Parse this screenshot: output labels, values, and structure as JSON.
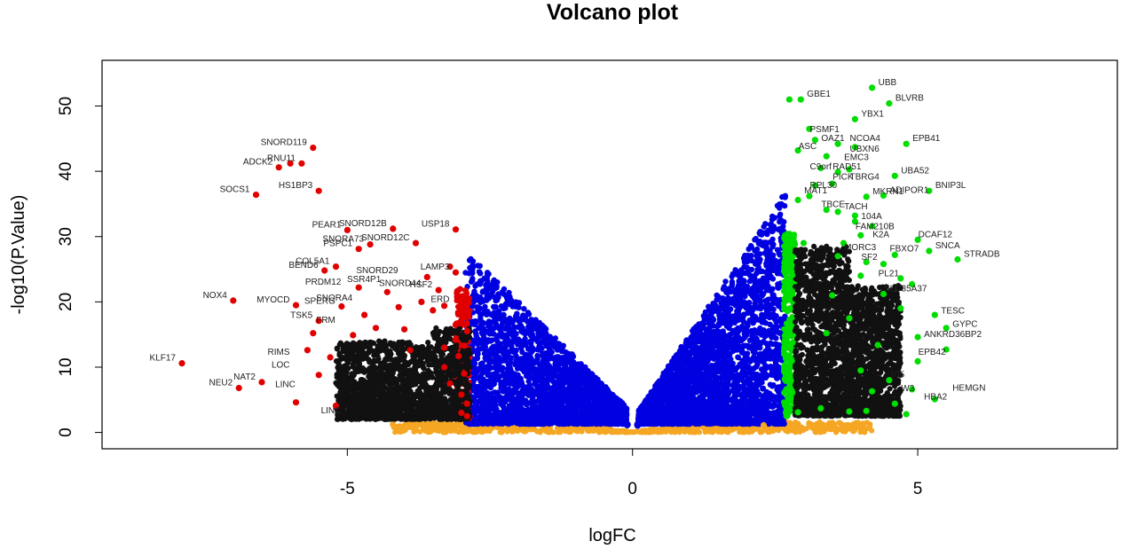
{
  "chart_data": {
    "type": "scatter",
    "title": "Volcano plot",
    "xlabel": "logFC",
    "ylabel": "-log10(P.Value)",
    "xlim": [
      -9.3,
      8.5
    ],
    "ylim": [
      -2.5,
      57
    ],
    "x_ticks": [
      -5,
      0,
      5
    ],
    "y_ticks": [
      0,
      10,
      20,
      30,
      40,
      50
    ],
    "x_tick_labels": [
      "-5",
      "0",
      "5"
    ],
    "y_tick_labels": [
      "0",
      "10",
      "20",
      "30",
      "40",
      "50"
    ],
    "grid": false,
    "legend": "none",
    "colors": {
      "not_significant": "#F5A623",
      "down_moderate": "#0000E0",
      "down_strong": "#E00000",
      "up_moderate": "#0000E0",
      "up_strong": "#00DD00",
      "labels": "#222222"
    },
    "groups": {
      "red": [
        [
          -7.9,
          10.6
        ],
        [
          -7.0,
          20.2
        ],
        [
          -6.9,
          6.8
        ],
        [
          -6.5,
          7.7
        ],
        [
          -6.6,
          36.4
        ],
        [
          -6.2,
          40.6
        ],
        [
          -6.0,
          41.2
        ],
        [
          -5.6,
          43.6
        ],
        [
          -5.8,
          41.2
        ],
        [
          -5.5,
          37.0
        ],
        [
          -5.9,
          19.5
        ],
        [
          -5.5,
          17.1
        ],
        [
          -5.4,
          24.8
        ],
        [
          -5.2,
          25.4
        ],
        [
          -5.0,
          31.0
        ],
        [
          -4.8,
          28.1
        ],
        [
          -4.6,
          28.8
        ],
        [
          -4.2,
          31.2
        ],
        [
          -3.8,
          29.0
        ],
        [
          -3.6,
          23.8
        ],
        [
          -3.1,
          31.1
        ],
        [
          -3.1,
          24.5
        ],
        [
          -3.4,
          21.8
        ],
        [
          -4.3,
          21.5
        ],
        [
          -5.1,
          19.3
        ],
        [
          -4.7,
          18.0
        ],
        [
          -3.0,
          17.2
        ],
        [
          -3.3,
          19.4
        ],
        [
          -5.3,
          11.5
        ],
        [
          -5.5,
          8.8
        ],
        [
          -4.9,
          14.9
        ],
        [
          -3.9,
          12.6
        ],
        [
          -3.1,
          14.2
        ],
        [
          -2.95,
          9.0
        ],
        [
          -2.9,
          4.4
        ],
        [
          -3.0,
          5.8
        ],
        [
          -3.2,
          7.5
        ],
        [
          -3.05,
          11.7
        ],
        [
          -2.95,
          13.3
        ],
        [
          -2.9,
          15.5
        ],
        [
          -3.1,
          16.5
        ],
        [
          -3.3,
          13.0
        ],
        [
          -3.5,
          18.7
        ],
        [
          -4.5,
          16.0
        ],
        [
          -4.1,
          19.2
        ],
        [
          -5.6,
          15.2
        ],
        [
          -5.7,
          12.6
        ],
        [
          -5.9,
          4.6
        ],
        [
          -5.2,
          4.1
        ],
        [
          -4.0,
          15.8
        ],
        [
          -3.7,
          20.0
        ],
        [
          -4.8,
          22.2
        ],
        [
          -3.3,
          10.0
        ],
        [
          -3.0,
          3.0
        ],
        [
          -2.9,
          2.5
        ],
        [
          -3.0,
          20.5
        ],
        [
          -3.2,
          25.4
        ],
        [
          -2.95,
          18.4
        ]
      ],
      "green": [
        [
          2.75,
          51.0
        ],
        [
          2.95,
          51.0
        ],
        [
          4.2,
          52.8
        ],
        [
          4.5,
          50.4
        ],
        [
          3.9,
          48.0
        ],
        [
          3.2,
          44.8
        ],
        [
          3.4,
          42.3
        ],
        [
          3.6,
          44.2
        ],
        [
          3.9,
          43.7
        ],
        [
          4.8,
          44.2
        ],
        [
          3.3,
          40.5
        ],
        [
          3.6,
          39.9
        ],
        [
          3.8,
          40.3
        ],
        [
          4.6,
          39.3
        ],
        [
          5.2,
          37.0
        ],
        [
          3.2,
          37.8
        ],
        [
          3.5,
          38.1
        ],
        [
          3.1,
          36.2
        ],
        [
          4.1,
          36.1
        ],
        [
          4.4,
          36.3
        ],
        [
          3.4,
          34.1
        ],
        [
          2.9,
          35.6
        ],
        [
          3.6,
          33.8
        ],
        [
          3.9,
          32.3
        ],
        [
          4.2,
          31.6
        ],
        [
          5.0,
          29.5
        ],
        [
          5.7,
          26.5
        ],
        [
          5.2,
          27.8
        ],
        [
          4.6,
          27.2
        ],
        [
          4.1,
          26.1
        ],
        [
          3.6,
          27.0
        ],
        [
          3.0,
          29.0
        ],
        [
          5.3,
          18.0
        ],
        [
          5.5,
          16.0
        ],
        [
          5.0,
          14.6
        ],
        [
          5.5,
          12.7
        ],
        [
          5.0,
          10.9
        ],
        [
          5.3,
          5.1
        ],
        [
          4.6,
          4.4
        ],
        [
          4.1,
          3.3
        ],
        [
          4.8,
          2.8
        ],
        [
          3.8,
          3.2
        ],
        [
          3.3,
          3.7
        ],
        [
          2.9,
          3.1
        ],
        [
          2.7,
          2.5
        ],
        [
          2.75,
          29.5
        ],
        [
          2.8,
          26.9
        ],
        [
          2.8,
          24.1
        ],
        [
          2.75,
          21.2
        ],
        [
          2.7,
          18.9
        ],
        [
          2.75,
          16.6
        ],
        [
          2.8,
          13.7
        ],
        [
          2.7,
          11.2
        ],
        [
          2.75,
          8.7
        ],
        [
          2.8,
          6.1
        ],
        [
          2.7,
          4.2
        ],
        [
          4.4,
          21.2
        ],
        [
          4.0,
          24.0
        ],
        [
          4.7,
          19.0
        ],
        [
          3.8,
          17.5
        ],
        [
          4.3,
          13.4
        ],
        [
          4.5,
          8.0
        ],
        [
          4.2,
          6.3
        ],
        [
          3.9,
          33.2
        ],
        [
          4.4,
          25.8
        ],
        [
          3.7,
          29.0
        ],
        [
          4.0,
          30.2
        ],
        [
          4.7,
          23.6
        ],
        [
          4.9,
          22.7
        ],
        [
          3.5,
          21.0
        ],
        [
          3.4,
          15.2
        ],
        [
          4.9,
          6.6
        ],
        [
          4.0,
          9.5
        ],
        [
          3.1,
          46.5
        ],
        [
          2.9,
          43.2
        ]
      ],
      "orange": [
        [
          2.9,
          1.3
        ],
        [
          3.1,
          1.3
        ],
        [
          2.3,
          1.1
        ],
        [
          -4.2,
          1.2
        ],
        [
          -3.4,
          1.1
        ]
      ]
    },
    "labels": [
      {
        "text": "KLF17",
        "x": -7.9,
        "y": 10.6,
        "anchor": "end"
      },
      {
        "text": "NOX4",
        "x": -7.0,
        "y": 20.2,
        "anchor": "end"
      },
      {
        "text": "NEU2",
        "x": -6.9,
        "y": 6.8,
        "anchor": "end"
      },
      {
        "text": "NAT2",
        "x": -6.5,
        "y": 7.7,
        "anchor": "end"
      },
      {
        "text": "MYOCD",
        "x": -5.9,
        "y": 19.5,
        "anchor": "end"
      },
      {
        "text": "SOCS1",
        "x": -6.6,
        "y": 36.4,
        "anchor": "end"
      },
      {
        "text": "ADCK2",
        "x": -6.2,
        "y": 40.6,
        "anchor": "end"
      },
      {
        "text": "RNU11",
        "x": -5.8,
        "y": 41.2,
        "anchor": "end"
      },
      {
        "text": "SNORD119",
        "x": -5.6,
        "y": 43.6,
        "anchor": "end"
      },
      {
        "text": "HS1BP3",
        "x": -5.5,
        "y": 37.0,
        "anchor": "end"
      },
      {
        "text": "PEAR1",
        "x": -5.0,
        "y": 31.0,
        "anchor": "end"
      },
      {
        "text": "SNORD12B",
        "x": -4.2,
        "y": 31.2,
        "anchor": "end"
      },
      {
        "text": "SNORD12C",
        "x": -3.8,
        "y": 29.0,
        "anchor": "end"
      },
      {
        "text": "SNORA73",
        "x": -4.6,
        "y": 28.8,
        "anchor": "end"
      },
      {
        "text": "PSPC1",
        "x": -4.8,
        "y": 28.1,
        "anchor": "end"
      },
      {
        "text": "USP18",
        "x": -3.1,
        "y": 31.1,
        "anchor": "end"
      },
      {
        "text": "LAMP3",
        "x": -3.1,
        "y": 24.5,
        "anchor": "end"
      },
      {
        "text": "COL5A1",
        "x": -5.2,
        "y": 25.4,
        "anchor": "end"
      },
      {
        "text": "BEND6",
        "x": -5.4,
        "y": 24.8,
        "anchor": "end"
      },
      {
        "text": "SNORD29",
        "x": -4.0,
        "y": 24.0,
        "anchor": "end"
      },
      {
        "text": "SSR4P1",
        "x": -4.3,
        "y": 22.6,
        "anchor": "end"
      },
      {
        "text": "SNORD44",
        "x": -3.6,
        "y": 22.0,
        "anchor": "end"
      },
      {
        "text": "PRDM12",
        "x": -5.0,
        "y": 22.2,
        "anchor": "end"
      },
      {
        "text": "HSF2",
        "x": -3.4,
        "y": 21.8,
        "anchor": "end"
      },
      {
        "text": "SNORA4",
        "x": -4.8,
        "y": 19.8,
        "anchor": "end"
      },
      {
        "text": "ERD",
        "x": -3.1,
        "y": 19.6,
        "anchor": "end"
      },
      {
        "text": "SPERG",
        "x": -5.1,
        "y": 19.3,
        "anchor": "end"
      },
      {
        "text": "TSK5",
        "x": -5.5,
        "y": 17.1,
        "anchor": "end"
      },
      {
        "text": "FRM",
        "x": -5.1,
        "y": 16.4,
        "anchor": "end"
      },
      {
        "text": "RIMS",
        "x": -5.9,
        "y": 11.5,
        "anchor": "end"
      },
      {
        "text": "LOC",
        "x": -5.9,
        "y": 9.5,
        "anchor": "end"
      },
      {
        "text": "LINC",
        "x": -5.8,
        "y": 6.5,
        "anchor": "end"
      },
      {
        "text": "LINC",
        "x": -5.0,
        "y": 2.5,
        "anchor": "end"
      },
      {
        "text": "GBE1",
        "x": 2.95,
        "y": 51.0,
        "anchor": "start"
      },
      {
        "text": "UBB",
        "x": 4.2,
        "y": 52.8,
        "anchor": "start"
      },
      {
        "text": "BLVRB",
        "x": 4.5,
        "y": 50.4,
        "anchor": "start"
      },
      {
        "text": "YBX1",
        "x": 3.9,
        "y": 48.0,
        "anchor": "start"
      },
      {
        "text": "PSMF1",
        "x": 3.0,
        "y": 45.6,
        "anchor": "start"
      },
      {
        "text": "OAZ1",
        "x": 3.2,
        "y": 44.2,
        "anchor": "start"
      },
      {
        "text": "NCOA4",
        "x": 3.7,
        "y": 44.2,
        "anchor": "start"
      },
      {
        "text": "EPB41",
        "x": 4.8,
        "y": 44.2,
        "anchor": "start"
      },
      {
        "text": "ASC",
        "x": 2.8,
        "y": 43.0,
        "anchor": "start"
      },
      {
        "text": "UBXN6",
        "x": 3.7,
        "y": 42.6,
        "anchor": "start"
      },
      {
        "text": "EMC3",
        "x": 3.6,
        "y": 41.3,
        "anchor": "start"
      },
      {
        "text": "C9orf",
        "x": 3.0,
        "y": 39.9,
        "anchor": "start"
      },
      {
        "text": "RAD51",
        "x": 3.4,
        "y": 39.9,
        "anchor": "start"
      },
      {
        "text": "UBA52",
        "x": 4.6,
        "y": 39.3,
        "anchor": "start"
      },
      {
        "text": "PICK",
        "x": 3.4,
        "y": 38.3,
        "anchor": "start"
      },
      {
        "text": "TBRG4",
        "x": 3.7,
        "y": 38.3,
        "anchor": "start"
      },
      {
        "text": "BNIP3L",
        "x": 5.2,
        "y": 37.0,
        "anchor": "start"
      },
      {
        "text": "RPL30",
        "x": 3.0,
        "y": 37.0,
        "anchor": "start"
      },
      {
        "text": "MAT1",
        "x": 2.9,
        "y": 36.2,
        "anchor": "start"
      },
      {
        "text": "MKRN1",
        "x": 4.1,
        "y": 36.1,
        "anchor": "start"
      },
      {
        "text": "ADIPOR1",
        "x": 4.4,
        "y": 36.3,
        "anchor": "start"
      },
      {
        "text": "TBCE",
        "x": 3.2,
        "y": 34.1,
        "anchor": "start"
      },
      {
        "text": "TACH",
        "x": 3.6,
        "y": 33.8,
        "anchor": "start"
      },
      {
        "text": "104A",
        "x": 3.9,
        "y": 32.3,
        "anchor": "start"
      },
      {
        "text": "FAM210B",
        "x": 3.8,
        "y": 30.7,
        "anchor": "start"
      },
      {
        "text": "K2A",
        "x": 4.1,
        "y": 29.5,
        "anchor": "start"
      },
      {
        "text": "DCAF12",
        "x": 4.9,
        "y": 29.5,
        "anchor": "start"
      },
      {
        "text": "SNCA",
        "x": 5.2,
        "y": 27.8,
        "anchor": "start"
      },
      {
        "text": "STRADB",
        "x": 5.7,
        "y": 26.5,
        "anchor": "start"
      },
      {
        "text": "FBXO7",
        "x": 4.4,
        "y": 27.3,
        "anchor": "start"
      },
      {
        "text": "MORC3",
        "x": 3.6,
        "y": 27.5,
        "anchor": "start"
      },
      {
        "text": "SF2",
        "x": 3.9,
        "y": 26.0,
        "anchor": "start"
      },
      {
        "text": "SLC35A37",
        "x": 4.3,
        "y": 21.2,
        "anchor": "start"
      },
      {
        "text": "PL21",
        "x": 4.2,
        "y": 23.5,
        "anchor": "start"
      },
      {
        "text": "TESC",
        "x": 5.3,
        "y": 17.8,
        "anchor": "start"
      },
      {
        "text": "GYPC",
        "x": 5.5,
        "y": 15.8,
        "anchor": "start"
      },
      {
        "text": "ANKRD36BP2",
        "x": 5.0,
        "y": 14.2,
        "anchor": "start"
      },
      {
        "text": "EPB42",
        "x": 4.9,
        "y": 11.5,
        "anchor": "start"
      },
      {
        "text": "HEMGN",
        "x": 5.5,
        "y": 6.0,
        "anchor": "start"
      },
      {
        "text": "HBA2",
        "x": 5.0,
        "y": 4.6,
        "anchor": "start"
      },
      {
        "text": "W3",
        "x": 4.6,
        "y": 5.9,
        "anchor": "start"
      },
      {
        "text": "105",
        "x": 4.4,
        "y": 8.0,
        "anchor": "start"
      }
    ]
  }
}
